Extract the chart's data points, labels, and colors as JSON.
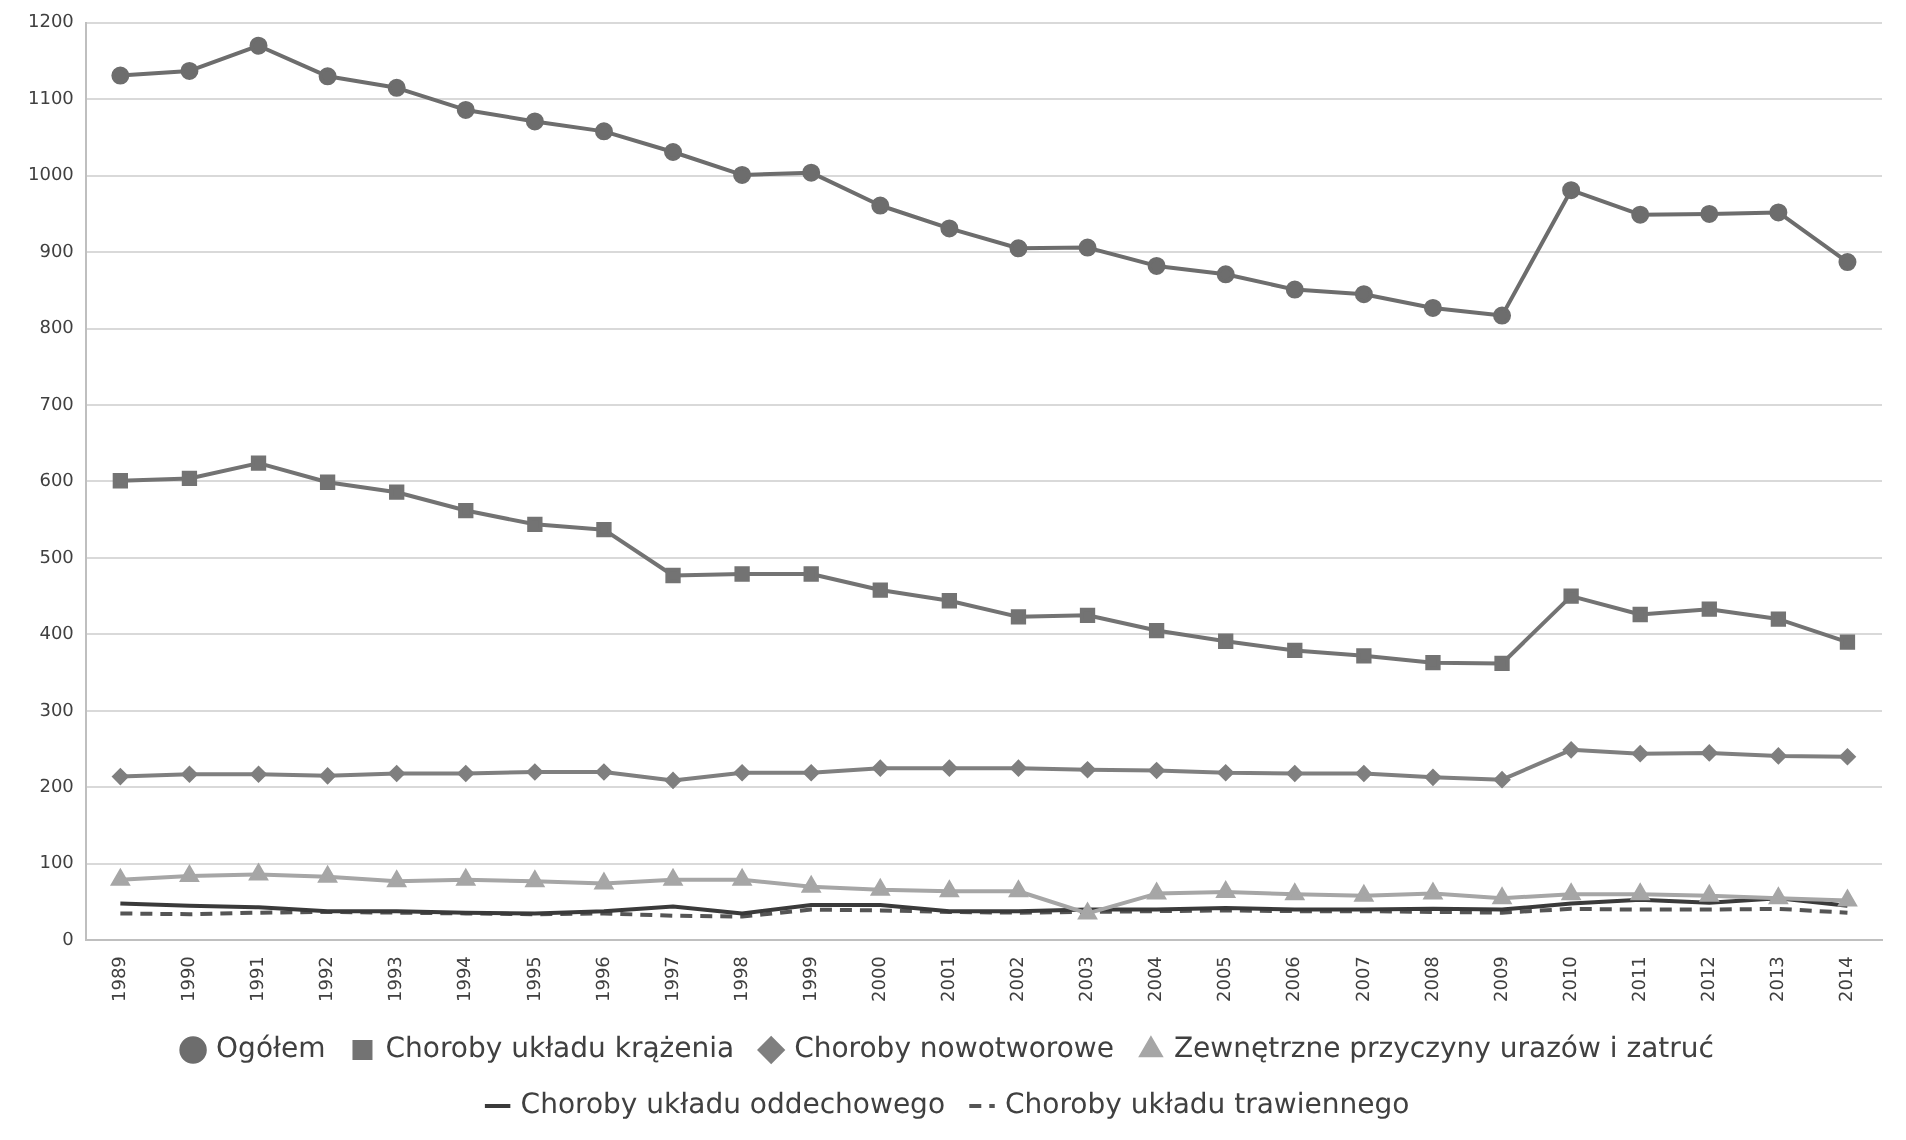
{
  "chart_data": {
    "type": "line",
    "categories": [
      "1989",
      "1990",
      "1991",
      "1992",
      "1993",
      "1994",
      "1995",
      "1996",
      "1997",
      "1998",
      "1999",
      "2000",
      "2001",
      "2002",
      "2003",
      "2004",
      "2005",
      "2006",
      "2007",
      "2008",
      "2009",
      "2010",
      "2011",
      "2012",
      "2013",
      "2014"
    ],
    "series": [
      {
        "name": "Ogółem",
        "color": "#6d6d6d",
        "marker": "circle",
        "values": [
          1131,
          1137,
          1170,
          1130,
          1115,
          1086,
          1071,
          1058,
          1031,
          1001,
          1004,
          961,
          931,
          905,
          906,
          882,
          871,
          851,
          845,
          827,
          817,
          981,
          949,
          950,
          952,
          887
        ]
      },
      {
        "name": "Choroby układu krążenia",
        "color": "#737373",
        "marker": "square",
        "values": [
          601,
          604,
          624,
          599,
          586,
          562,
          544,
          537,
          477,
          479,
          479,
          458,
          444,
          423,
          425,
          405,
          391,
          379,
          372,
          363,
          362,
          450,
          426,
          433,
          420,
          390
        ]
      },
      {
        "name": "Choroby nowotworowe",
        "color": "#7f7f7f",
        "marker": "diamond",
        "values": [
          214,
          217,
          217,
          215,
          218,
          218,
          220,
          220,
          209,
          219,
          219,
          225,
          225,
          225,
          223,
          222,
          219,
          218,
          218,
          213,
          210,
          249,
          244,
          245,
          241,
          240
        ]
      },
      {
        "name": "Zewnętrzne przyczyny urazów i zatruć",
        "color": "#a6a6a6",
        "marker": "triangle",
        "values": [
          79,
          84,
          86,
          83,
          77,
          79,
          77,
          74,
          79,
          79,
          70,
          66,
          64,
          64,
          35,
          61,
          63,
          60,
          58,
          61,
          55,
          60,
          60,
          58,
          55,
          52
        ]
      },
      {
        "name": "Choroby układu oddechowego",
        "color": "#3a3a3a",
        "marker": "none",
        "values": [
          48,
          45,
          43,
          38,
          38,
          36,
          35,
          38,
          44,
          35,
          46,
          46,
          38,
          38,
          40,
          40,
          42,
          40,
          40,
          41,
          40,
          48,
          53,
          49,
          55,
          45
        ]
      },
      {
        "name": "Choroby układu trawiennego",
        "color": "#555555",
        "marker": "none",
        "line_style": "dashed",
        "values": [
          35,
          34,
          36,
          37,
          36,
          35,
          34,
          35,
          32,
          31,
          40,
          39,
          37,
          36,
          37,
          38,
          39,
          38,
          38,
          37,
          36,
          41,
          40,
          40,
          41,
          36
        ]
      }
    ],
    "ylim": [
      0,
      1200
    ],
    "yticks": [
      0,
      100,
      200,
      300,
      400,
      500,
      600,
      700,
      800,
      900,
      1000,
      1100,
      1200
    ],
    "grid": "y",
    "legend": "bottom"
  }
}
